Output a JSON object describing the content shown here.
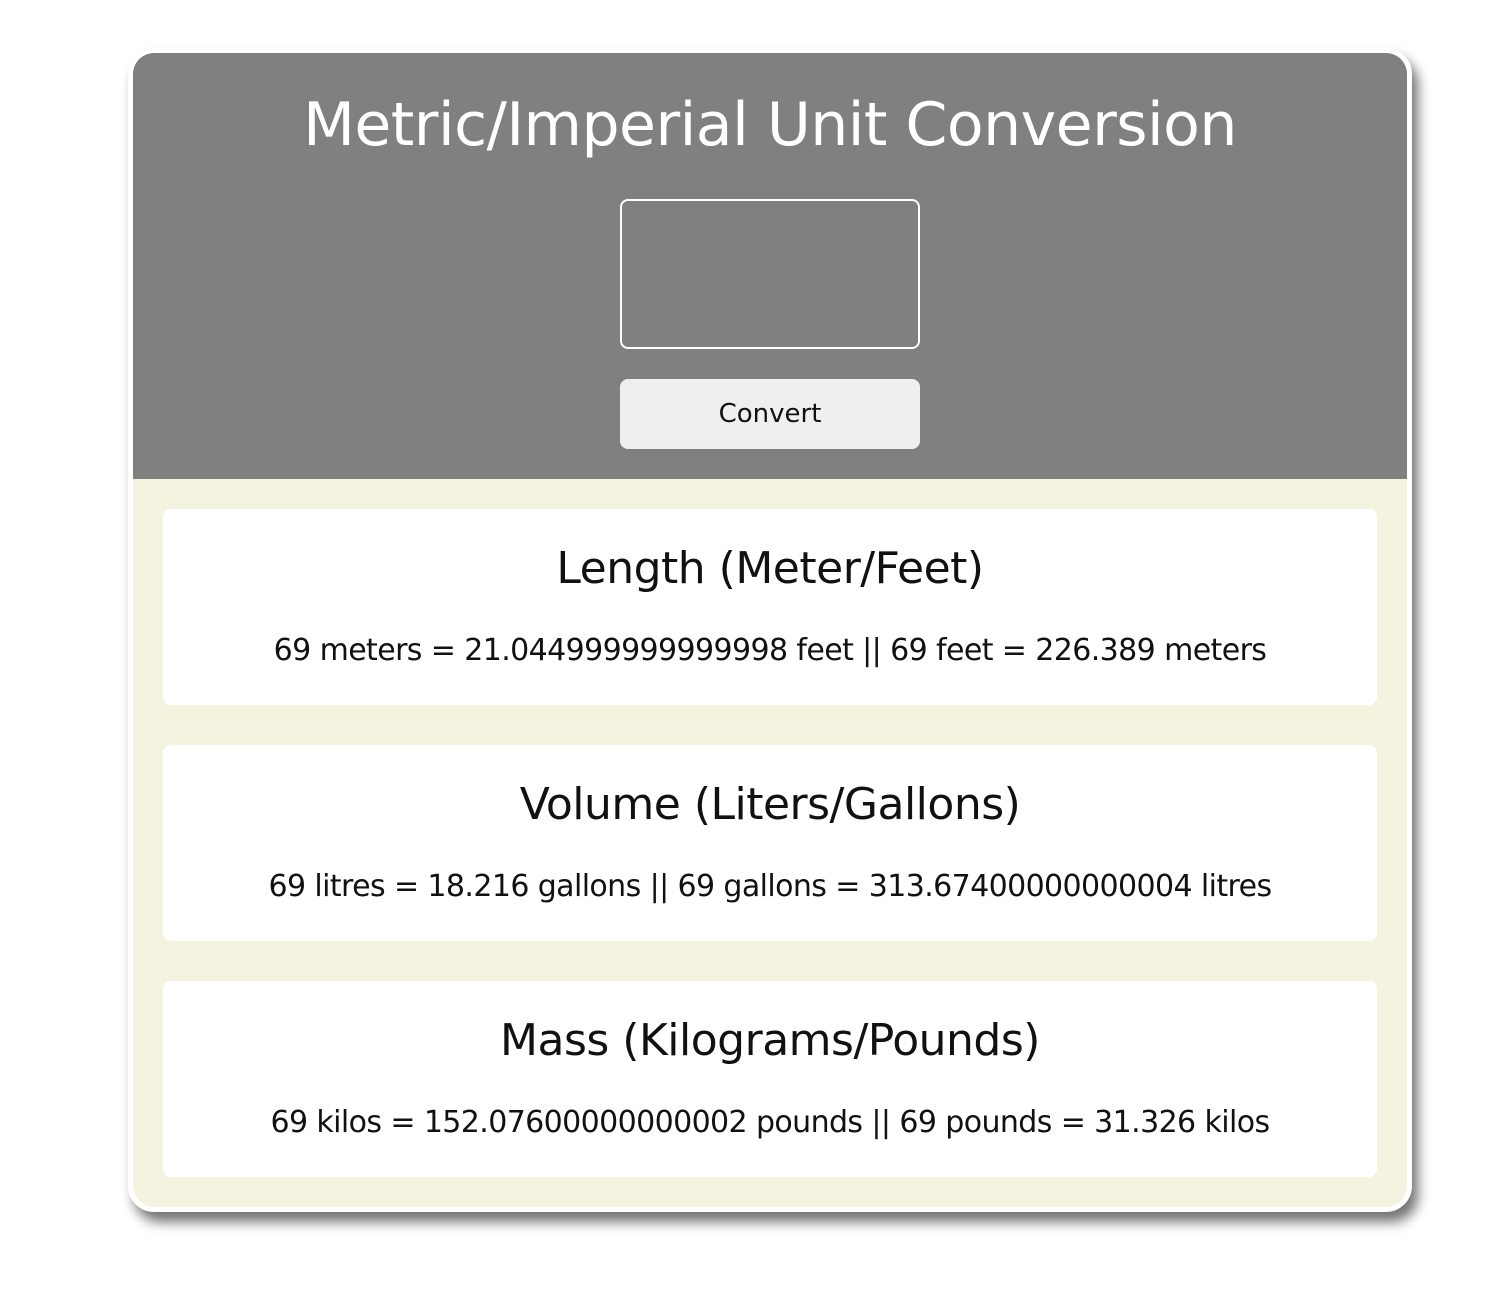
{
  "header": {
    "title": "Metric/Imperial Unit Conversion",
    "input_value": "",
    "convert_label": "Convert"
  },
  "sections": [
    {
      "title": "Length (Meter/Feet)",
      "result": "69 meters = 21.044999999999998 feet || 69 feet = 226.389 meters"
    },
    {
      "title": "Volume (Liters/Gallons)",
      "result": "69 litres = 18.216 gallons || 69 gallons = 313.67400000000004 litres"
    },
    {
      "title": "Mass (Kilograms/Pounds)",
      "result": "69 kilos = 152.07600000000002 pounds || 69 pounds = 31.326 kilos"
    }
  ],
  "colors": {
    "header_bg": "#808080",
    "body_bg": "#f3f3e0",
    "section_bg": "#ffffff",
    "button_bg": "#efefef"
  }
}
